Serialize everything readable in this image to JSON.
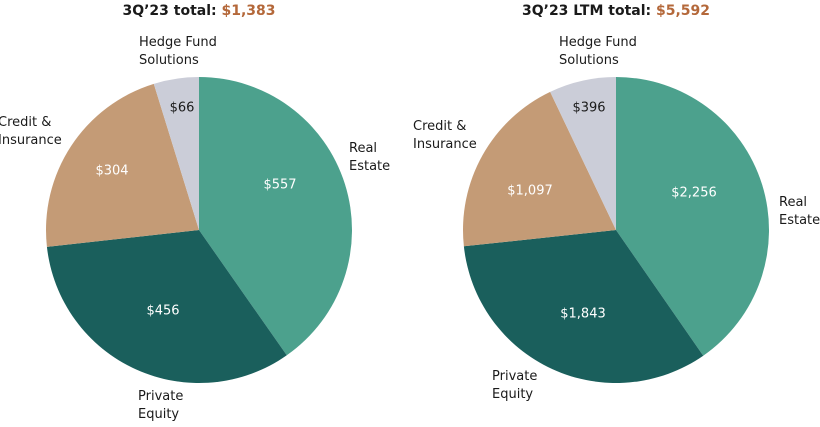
{
  "chart_data": [
    {
      "type": "pie",
      "title_prefix": "3Q’23 total:",
      "title_total": "$1,383",
      "categories": [
        "Real Estate",
        "Private Equity",
        "Credit & Insurance",
        "Hedge Fund Solutions"
      ],
      "values": [
        557,
        456,
        304,
        66
      ],
      "value_labels": [
        "$557",
        "$456",
        "$304",
        "$66"
      ],
      "category_labels": [
        [
          "Real",
          "Estate"
        ],
        [
          "Private",
          "Equity"
        ],
        [
          "Credit &",
          "Insurance"
        ],
        [
          "Hedge Fund",
          "Solutions"
        ]
      ],
      "colors": [
        "#4ca18d",
        "#1a5f5c",
        "#c49b76",
        "#cbcdd8"
      ],
      "value_label_colors": [
        "#ffffff",
        "#ffffff",
        "#ffffff",
        "#1a1a1a"
      ]
    },
    {
      "type": "pie",
      "title_prefix": "3Q’23 LTM total:",
      "title_total": "$5,592",
      "categories": [
        "Real Estate",
        "Private Equity",
        "Credit & Insurance",
        "Hedge Fund Solutions"
      ],
      "values": [
        2256,
        1843,
        1097,
        396
      ],
      "value_labels": [
        "$2,256",
        "$1,843",
        "$1,097",
        "$396"
      ],
      "category_labels": [
        [
          "Real",
          "Estate"
        ],
        [
          "Private",
          "Equity"
        ],
        [
          "Credit &",
          "Insurance"
        ],
        [
          "Hedge Fund",
          "Solutions"
        ]
      ],
      "colors": [
        "#4ca18d",
        "#1a5f5c",
        "#c49b76",
        "#cbcdd8"
      ],
      "value_label_colors": [
        "#ffffff",
        "#ffffff",
        "#ffffff",
        "#1a1a1a"
      ]
    }
  ],
  "style": {
    "total_color": "#b4683a"
  }
}
